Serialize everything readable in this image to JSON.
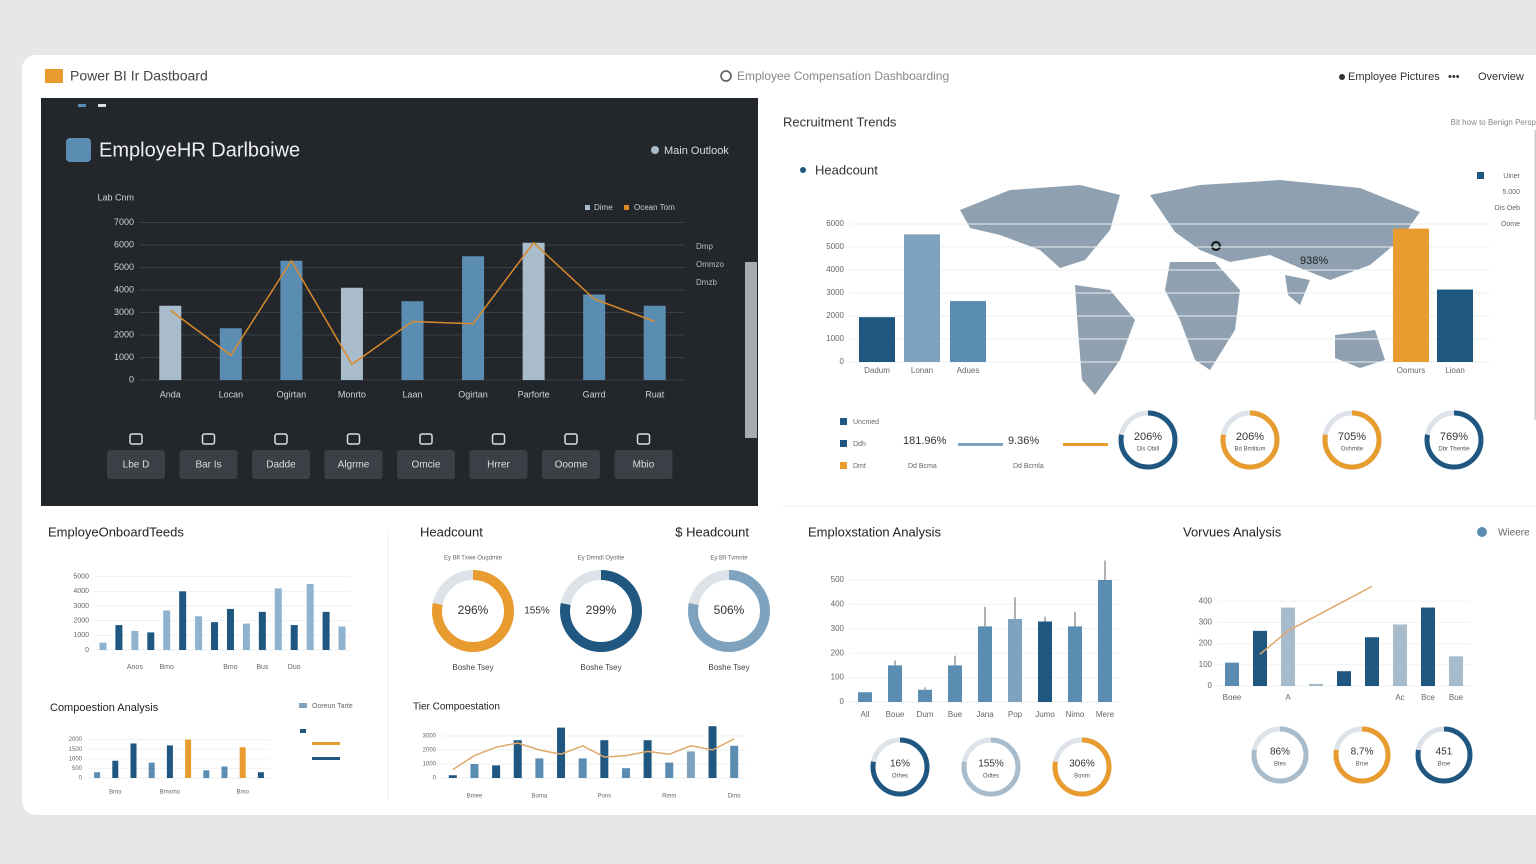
{
  "header": {
    "app_title": "Power BI Ir Dastboard",
    "center_title": "Employee Compensation Dashboarding",
    "links": [
      "Employee Pictures",
      "Overview"
    ]
  },
  "dark_panel": {
    "title": "EmployeHR Darlboiwe",
    "legend": "Main Outlook",
    "side_labels": [
      "Dmp",
      "Ommzo",
      "Dmzb"
    ],
    "buttons": [
      "Lbe D",
      "Bar Is",
      "Dadde",
      "Algrme",
      "Omcie",
      "Hrrer",
      "Ooome",
      "Mbio"
    ]
  },
  "recruitment": {
    "title": "Recruitment Trends",
    "note": "Bit how to Benign Persp",
    "annotation": "938%",
    "legend": [
      "Uiner",
      "5.000",
      "Dis Oeb",
      "Oome"
    ],
    "kpi_legend": [
      "Uncmed",
      "Ddh",
      "Dmt"
    ],
    "kpis": [
      {
        "value": "181.96%",
        "caption": "Dd Bcma"
      },
      {
        "value": "9.36%",
        "caption": "Dd Bcrnla"
      }
    ],
    "gauges": [
      {
        "value": "206%",
        "caption": "Dis Obill",
        "color": "#1f5780"
      },
      {
        "value": "206%",
        "caption": "Bd Bmtitum",
        "color": "#e89b2e"
      },
      {
        "value": "705%",
        "caption": "Oshmite",
        "color": "#e89b2e"
      },
      {
        "value": "769%",
        "caption": "Dbr Thentie",
        "color": "#1f5780"
      }
    ]
  },
  "panels": {
    "onboarding": "EmployeOnboardTeeds",
    "compensation": "Compoestion Analysis",
    "compensation_legend": "Ooreun Tarte",
    "headcount": "Headcount",
    "headcount_right": "$ Headcount",
    "tier": "Tier Compoestation",
    "retention": "Emploxstation Analysis",
    "variance": "Vorvues Analysis",
    "variance_legend": "Wieere"
  },
  "headcount_donuts": {
    "between": "155%",
    "items": [
      {
        "value": "296%",
        "caption": "Boshe Tsey",
        "header": "Ey Bfl Txwe Ouqdmte",
        "color": "#e89b2e"
      },
      {
        "value": "299%",
        "caption": "Boshe Tsey",
        "header": "Ey Dmndl Oyoitte",
        "color": "#1f5780"
      },
      {
        "value": "506%",
        "caption": "Boshe Tsey",
        "header": "Ey Bfl Tvmnte",
        "color": "#7fa3bf"
      }
    ]
  },
  "retention_donuts": [
    {
      "value": "16%",
      "caption": "Orhes",
      "color": "#1f5780"
    },
    {
      "value": "155%",
      "caption": "Odtes",
      "color": "#a9bccb"
    },
    {
      "value": "306%",
      "caption": "Bonm",
      "color": "#e89b2e"
    }
  ],
  "variance_donuts": [
    {
      "value": "86%",
      "caption": "Btes",
      "color": "#a9bccb"
    },
    {
      "value": "8.7%",
      "caption": "Broe",
      "color": "#e89b2e"
    },
    {
      "value": "451",
      "caption": "Broe",
      "color": "#1f5780"
    }
  ],
  "charts": [
    {
      "type": "combo",
      "axis_label": "Lab Cnm",
      "categories": [
        "Anda",
        "Locan",
        "Ogirtan",
        "Monrto",
        "Laan",
        "Ogirtan",
        "Parforte",
        "Garrd",
        "Ruat"
      ],
      "series": [
        {
          "name": "Dime",
          "type": "bar",
          "colors": [
            "#a9bccb",
            "#5b8db3",
            "#5b8db3",
            "#a9bccb",
            "#5b8db3",
            "#5b8db3",
            "#a9bccb",
            "#5b8db3",
            "#5b8db3"
          ],
          "values": [
            3300,
            2300,
            5300,
            4100,
            3500,
            5500,
            6100,
            3800,
            3300
          ]
        },
        {
          "name": "Ocean Tom",
          "type": "line",
          "color": "#d98a2b",
          "values": [
            3100,
            1100,
            5300,
            700,
            2600,
            2500,
            6100,
            3600,
            2600
          ]
        }
      ],
      "ylim": [
        0,
        8000
      ],
      "yticks": [
        0,
        1000,
        2000,
        3000,
        4000,
        5000,
        6000,
        7000
      ],
      "grid": true
    },
    {
      "type": "bar",
      "categories": [
        "Dadum",
        "Lonan",
        "Adues",
        "Oomurs",
        "Lioan"
      ],
      "series": [
        {
          "name": "Headcount",
          "type": "bar",
          "colors": [
            "#1f5780",
            "#7fa3bf",
            "#5b8db3",
            "#e89b2e",
            "#1f5780"
          ],
          "values": [
            1950,
            5550,
            2650,
            5800,
            3150
          ]
        }
      ],
      "ylim": [
        0,
        7000
      ],
      "yticks": [
        0,
        1000,
        2000,
        3000,
        4000,
        5000,
        6000
      ],
      "grid": true
    },
    {
      "type": "bar",
      "categories": [
        null,
        null,
        "Anos",
        null,
        "Bmo",
        null,
        null,
        null,
        "Bmo",
        null,
        "Bus",
        null,
        "Duo",
        null,
        null,
        null
      ],
      "series": [
        {
          "type": "bar",
          "colors": [
            "#8fb3cf",
            "#1f5780",
            "#8fb3cf",
            "#1f5780",
            "#8fb3cf",
            "#1f5780",
            "#8fb3cf",
            "#1f5780",
            "#1f5780",
            "#8fb3cf",
            "#1f5780",
            "#8fb3cf",
            "#1f5780",
            "#8fb3cf",
            "#1f5780",
            "#8fb3cf"
          ],
          "values": [
            500,
            1700,
            1300,
            1200,
            2700,
            4000,
            2300,
            1900,
            2800,
            1800,
            2600,
            4200,
            1700,
            4500,
            2600,
            1600
          ]
        }
      ],
      "ylim": [
        0,
        6000
      ],
      "yticks": [
        0,
        1000,
        2000,
        3000,
        4000,
        5000
      ],
      "grid": true
    },
    {
      "type": "bar",
      "categories": [
        null,
        "Bmo",
        null,
        null,
        "Bmsmo",
        null,
        null,
        null,
        "Bmo",
        null
      ],
      "series": [
        {
          "type": "bar",
          "colors": [
            "#5b8db3",
            "#1f5780",
            "#1f5780",
            "#5b8db3",
            "#1f5780",
            "#e89b2e",
            "#5b8db3",
            "#5b8db3",
            "#e89b2e",
            "#1f5780"
          ],
          "values": [
            300,
            900,
            1800,
            800,
            1700,
            2000,
            400,
            600,
            1600,
            300
          ]
        }
      ],
      "ylim": [
        0,
        2500
      ],
      "yticks": [
        0,
        500,
        1000,
        1500,
        2000
      ],
      "grid": true
    },
    {
      "type": "combo",
      "categories": [
        null,
        "Bmee",
        null,
        null,
        "Boma",
        null,
        null,
        "Pons",
        null,
        null,
        "Rmm",
        null,
        null,
        "Dmo"
      ],
      "series": [
        {
          "type": "bar",
          "colors": [
            "#1f5780",
            "#5b8db3",
            "#1f5780",
            "#1f5780",
            "#5b8db3",
            "#1f5780",
            "#5b8db3",
            "#1f5780",
            "#5b8db3",
            "#1f5780",
            "#5b8db3",
            "#7fa3bf",
            "#1f5780",
            "#5b8db3"
          ],
          "values": [
            200,
            1000,
            900,
            2700,
            1400,
            3600,
            1400,
            2700,
            700,
            2700,
            1100,
            1900,
            3700,
            2300
          ]
        },
        {
          "type": "line",
          "color": "#e0a86a",
          "values": [
            600,
            1600,
            2200,
            2500,
            2000,
            1700,
            2300,
            1500,
            1600,
            1900,
            1700,
            2300,
            2000,
            2800
          ]
        }
      ],
      "ylim": [
        0,
        4000
      ],
      "yticks": [
        0,
        1000,
        2000,
        3000
      ],
      "grid": true
    },
    {
      "type": "bar",
      "categories": [
        "All",
        "Boue",
        "Dum",
        "Bue",
        "Jana",
        "Pop",
        "Jumo",
        "Nimo",
        "Mere"
      ],
      "series": [
        {
          "type": "bar",
          "colors": [
            "#5b8db3",
            "#5b8db3",
            "#5b8db3",
            "#5b8db3",
            "#5b8db3",
            "#7fa3bf",
            "#1f5780",
            "#5b8db3",
            "#5b8db3"
          ],
          "values": [
            40,
            150,
            50,
            150,
            310,
            340,
            330,
            310,
            500
          ],
          "errors": [
            0,
            20,
            10,
            40,
            80,
            90,
            20,
            60,
            80
          ]
        }
      ],
      "ylim": [
        0,
        500
      ],
      "yticks": [
        0,
        100,
        200,
        300,
        400,
        500
      ],
      "grid": true
    },
    {
      "type": "combo",
      "categories": [
        "Boee",
        null,
        "A",
        null,
        null,
        null,
        "Ac",
        "Bce",
        "Bue"
      ],
      "series": [
        {
          "type": "bar",
          "colors": [
            "#5b8db3",
            "#1f5780",
            "#a9bccb",
            "#a9bccb",
            "#1f5780",
            "#1f5780",
            "#a9bccb",
            "#1f5780",
            "#a9bccb"
          ],
          "values": [
            110,
            260,
            370,
            10,
            70,
            230,
            290,
            370,
            140
          ]
        },
        {
          "type": "line",
          "color": "#e0a86a",
          "values": [
            null,
            150,
            260,
            330,
            400,
            470,
            null,
            null,
            null
          ]
        }
      ],
      "ylim": [
        0,
        500
      ],
      "yticks": [
        0,
        100,
        200,
        300,
        400
      ],
      "grid": true
    }
  ]
}
